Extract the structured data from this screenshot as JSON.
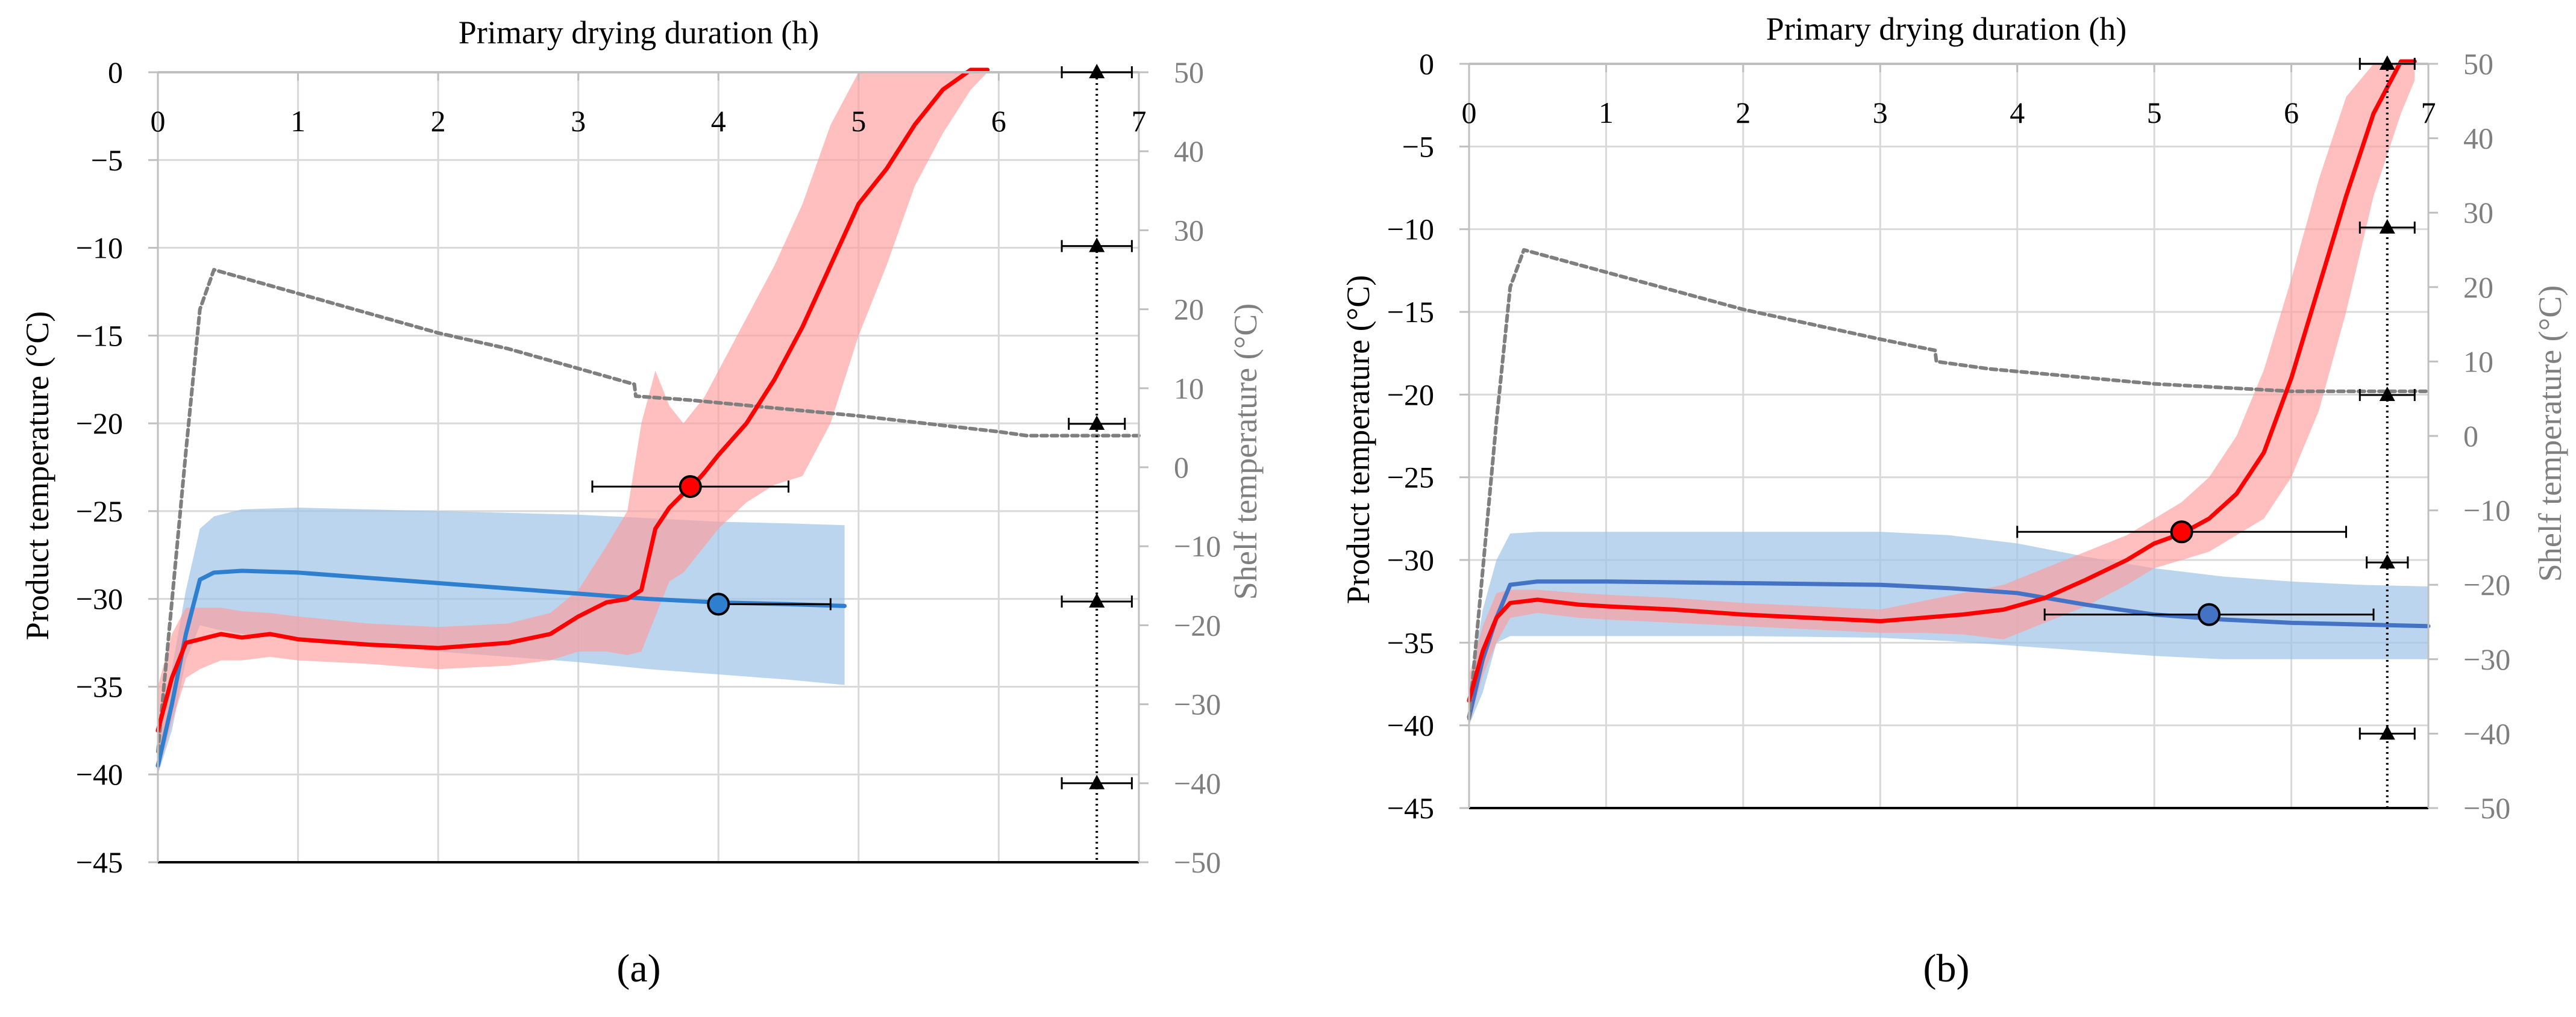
{
  "figure": {
    "panels": [
      {
        "label": "(a)",
        "letter": "a"
      },
      {
        "label": "(b)",
        "letter": "b"
      }
    ]
  },
  "chart_data": [
    {
      "type": "line",
      "panel": "a",
      "title": "Primary drying duration (h)",
      "xlabel": "Primary drying duration (h)",
      "ylabel": "Product temperature (°C)",
      "y2label": "Shelf temperature (°C)",
      "xlim": [
        0,
        7
      ],
      "ylim": [
        -45,
        0
      ],
      "y2lim": [
        -50,
        50
      ],
      "xticks": [
        0,
        1,
        2,
        3,
        4,
        5,
        6,
        7
      ],
      "yticks": [
        0,
        -5,
        -10,
        -15,
        -20,
        -25,
        -30,
        -35,
        -40,
        -45
      ],
      "y2ticks": [
        50,
        40,
        30,
        20,
        10,
        0,
        -10,
        -20,
        -30,
        -40,
        -50
      ],
      "grid": true,
      "colors": {
        "red": "#ff0000",
        "red_band": "#ff9c9c",
        "blue": "#2e7fcf",
        "blue_band": "#9dc3e6",
        "shelf": "#7f7f7f"
      },
      "series": [
        {
          "name": "Product temperature (red)",
          "axis": "left",
          "x": [
            0.0,
            0.1,
            0.2,
            0.3,
            0.45,
            0.6,
            0.8,
            1.0,
            1.5,
            2.0,
            2.5,
            2.8,
            3.0,
            3.2,
            3.35,
            3.45,
            3.55,
            3.65,
            3.75,
            3.8,
            3.9,
            4.0,
            4.2,
            4.4,
            4.6,
            4.8,
            5.0,
            5.2,
            5.4,
            5.6,
            5.8,
            5.92
          ],
          "y": [
            -37.5,
            -34.5,
            -32.5,
            -32.3,
            -32.0,
            -32.2,
            -32.0,
            -32.3,
            -32.6,
            -32.8,
            -32.5,
            -32.0,
            -31.0,
            -30.2,
            -30.0,
            -29.5,
            -26.0,
            -24.8,
            -24.0,
            -23.7,
            -22.8,
            -21.8,
            -20.0,
            -17.5,
            -14.5,
            -11.0,
            -7.5,
            -5.5,
            -3.0,
            -1.0,
            0.5,
            1.5
          ],
          "band_upper": [
            -35.0,
            -32.0,
            -30.5,
            -30.5,
            -30.5,
            -30.7,
            -30.8,
            -31.0,
            -31.4,
            -31.6,
            -31.4,
            -30.8,
            -29.5,
            -27.0,
            -25.0,
            -20.0,
            -17.0,
            -19.0,
            -20.0,
            -19.5,
            -18.5,
            -17.0,
            -14.0,
            -11.0,
            -7.5,
            -3.0,
            0.0,
            0.5,
            0.5,
            0.5,
            0.5,
            0.5
          ],
          "band_lower": [
            -40.0,
            -37.0,
            -34.5,
            -34.0,
            -33.5,
            -33.5,
            -33.3,
            -33.5,
            -33.7,
            -34.0,
            -33.8,
            -33.5,
            -33.0,
            -33.0,
            -33.2,
            -33.0,
            -31.0,
            -29.0,
            -28.5,
            -28.0,
            -27.0,
            -26.0,
            -24.5,
            -23.5,
            -23.0,
            -20.0,
            -15.0,
            -11.0,
            -6.5,
            -3.5,
            -1.0,
            0.0
          ]
        },
        {
          "name": "Product temperature (blue)",
          "axis": "left",
          "x": [
            0.0,
            0.1,
            0.2,
            0.3,
            0.4,
            0.6,
            1.0,
            1.5,
            2.0,
            2.5,
            3.0,
            3.5,
            4.0,
            4.5,
            4.9
          ],
          "y": [
            -39.5,
            -36.0,
            -32.0,
            -28.9,
            -28.5,
            -28.4,
            -28.5,
            -28.8,
            -29.1,
            -29.4,
            -29.7,
            -30.0,
            -30.2,
            -30.3,
            -30.4
          ],
          "band_upper": [
            -38.0,
            -34.0,
            -29.5,
            -26.0,
            -25.3,
            -24.9,
            -24.8,
            -24.9,
            -25.0,
            -25.1,
            -25.2,
            -25.4,
            -25.6,
            -25.7,
            -25.8
          ],
          "band_lower": [
            -40.0,
            -37.5,
            -33.5,
            -31.5,
            -31.7,
            -32.0,
            -32.3,
            -32.6,
            -33.0,
            -33.3,
            -33.6,
            -34.0,
            -34.3,
            -34.6,
            -34.9
          ]
        },
        {
          "name": "Shelf temperature",
          "axis": "right",
          "style": "dashed",
          "x": [
            0.0,
            0.1,
            0.2,
            0.3,
            0.4,
            0.6,
            1.0,
            1.5,
            2.0,
            2.5,
            3.0,
            3.4,
            3.41,
            3.8,
            4.4,
            5.0,
            5.5,
            6.0,
            6.2,
            6.6,
            7.0
          ],
          "y": [
            -36.0,
            -17.0,
            2.0,
            20.0,
            25.0,
            24.0,
            22.0,
            19.5,
            17.0,
            15.0,
            12.5,
            10.5,
            9.0,
            8.5,
            7.5,
            6.5,
            5.5,
            4.5,
            4.0,
            4.0,
            4.0
          ]
        }
      ],
      "markers": [
        {
          "name": "Red endpoint",
          "x": 3.8,
          "y": -23.6,
          "xerr": [
            3.1,
            4.5
          ],
          "color": "#ff0000"
        },
        {
          "name": "Blue endpoint",
          "x": 4.0,
          "y": -30.3,
          "xerr": [
            4.0,
            4.8
          ],
          "color": "#2e7fcf"
        }
      ],
      "vertical_line": {
        "x": 6.7,
        "style": "dotted",
        "points": [
          {
            "y2": 50,
            "xerr": [
              6.45,
              6.95
            ]
          },
          {
            "y2": 28,
            "xerr": [
              6.45,
              6.95
            ]
          },
          {
            "y2": 5.5,
            "xerr": [
              6.5,
              6.9
            ]
          },
          {
            "y2": -17,
            "xerr": [
              6.45,
              6.95
            ]
          },
          {
            "y2": -40,
            "xerr": [
              6.45,
              6.95
            ]
          }
        ]
      }
    },
    {
      "type": "line",
      "panel": "b",
      "title": "Primary drying duration (h)",
      "xlabel": "Primary drying duration (h)",
      "ylabel": "Product temperature (°C)",
      "y2label": "Shelf temperature (°C)",
      "xlim": [
        0,
        7
      ],
      "ylim": [
        -45,
        0
      ],
      "y2lim": [
        -50,
        50
      ],
      "xticks": [
        0,
        1,
        2,
        3,
        4,
        5,
        6,
        7
      ],
      "yticks": [
        0,
        -5,
        -10,
        -15,
        -20,
        -25,
        -30,
        -35,
        -40,
        -45
      ],
      "y2ticks": [
        50,
        40,
        30,
        20,
        10,
        0,
        -10,
        -20,
        -30,
        -40,
        -50
      ],
      "grid": true,
      "colors": {
        "red": "#ff0000",
        "red_band": "#ff9c9c",
        "blue": "#4472c4",
        "blue_band": "#9dc3e6",
        "shelf": "#7f7f7f"
      },
      "series": [
        {
          "name": "Product temperature (red)",
          "axis": "left",
          "x": [
            0.0,
            0.1,
            0.2,
            0.3,
            0.5,
            0.8,
            1.0,
            1.5,
            2.0,
            2.5,
            3.0,
            3.3,
            3.6,
            3.9,
            4.2,
            4.5,
            4.8,
            5.0,
            5.2,
            5.4,
            5.6,
            5.8,
            6.0,
            6.2,
            6.4,
            6.6,
            6.8,
            6.9
          ],
          "y": [
            -38.5,
            -35.5,
            -33.5,
            -32.6,
            -32.4,
            -32.7,
            -32.8,
            -33.0,
            -33.3,
            -33.5,
            -33.7,
            -33.5,
            -33.3,
            -33.0,
            -32.3,
            -31.2,
            -30.0,
            -29.0,
            -28.4,
            -27.5,
            -26.0,
            -23.5,
            -19.0,
            -13.5,
            -8.0,
            -3.0,
            0.5,
            1.5
          ],
          "band_upper": [
            -37.0,
            -34.0,
            -32.0,
            -31.8,
            -31.8,
            -32.0,
            -32.1,
            -32.3,
            -32.6,
            -32.8,
            -33.0,
            -32.5,
            -32.0,
            -31.5,
            -30.5,
            -29.5,
            -28.5,
            -27.5,
            -26.5,
            -25.0,
            -22.5,
            -18.5,
            -13.0,
            -7.0,
            -2.0,
            0.5,
            0.5,
            0.5
          ],
          "band_lower": [
            -40.0,
            -37.0,
            -35.0,
            -33.5,
            -33.2,
            -33.5,
            -33.6,
            -33.8,
            -34.0,
            -34.2,
            -34.4,
            -34.4,
            -34.5,
            -34.8,
            -33.8,
            -32.8,
            -31.5,
            -30.5,
            -30.0,
            -29.5,
            -28.5,
            -27.5,
            -25.0,
            -21.0,
            -15.0,
            -8.0,
            -3.0,
            -1.0
          ]
        },
        {
          "name": "Product temperature (blue)",
          "axis": "left",
          "x": [
            0.0,
            0.1,
            0.2,
            0.3,
            0.5,
            1.0,
            2.0,
            3.0,
            3.5,
            4.0,
            4.5,
            5.0,
            5.5,
            6.0,
            6.5,
            7.0
          ],
          "y": [
            -39.5,
            -36.0,
            -33.5,
            -31.5,
            -31.3,
            -31.3,
            -31.4,
            -31.5,
            -31.7,
            -32.0,
            -32.7,
            -33.3,
            -33.6,
            -33.8,
            -33.9,
            -34.0
          ],
          "band_upper": [
            -38.0,
            -33.0,
            -30.0,
            -28.4,
            -28.3,
            -28.3,
            -28.3,
            -28.3,
            -28.5,
            -29.0,
            -29.8,
            -30.5,
            -31.0,
            -31.3,
            -31.5,
            -31.6
          ],
          "band_lower": [
            -40.0,
            -38.0,
            -35.0,
            -34.6,
            -34.6,
            -34.6,
            -34.6,
            -34.7,
            -34.9,
            -35.2,
            -35.5,
            -35.8,
            -36.0,
            -36.0,
            -36.0,
            -36.0
          ]
        },
        {
          "name": "Shelf temperature",
          "axis": "right",
          "style": "dashed",
          "x": [
            0.0,
            0.1,
            0.2,
            0.3,
            0.4,
            0.6,
            1.0,
            1.5,
            2.0,
            2.5,
            3.0,
            3.4,
            3.41,
            3.8,
            4.4,
            5.0,
            5.5,
            6.0,
            6.5,
            7.0
          ],
          "y": [
            -38.0,
            -18.0,
            2.0,
            20.0,
            25.0,
            24.0,
            22.0,
            19.5,
            17.0,
            15.0,
            13.0,
            11.5,
            10.0,
            9.0,
            8.0,
            7.0,
            6.5,
            6.0,
            6.0,
            6.0
          ]
        }
      ],
      "markers": [
        {
          "name": "Red endpoint",
          "x": 5.2,
          "y": -28.3,
          "xerr": [
            4.0,
            6.4
          ],
          "color": "#ff0000"
        },
        {
          "name": "Blue endpoint",
          "x": 5.4,
          "y": -33.3,
          "xerr": [
            4.2,
            6.6
          ],
          "color": "#4472c4"
        }
      ],
      "vertical_line": {
        "x": 6.7,
        "style": "dotted",
        "points": [
          {
            "y2": 50,
            "xerr": [
              6.5,
              6.9
            ]
          },
          {
            "y2": 28,
            "xerr": [
              6.5,
              6.9
            ]
          },
          {
            "y2": 5.5,
            "xerr": [
              6.5,
              6.9
            ]
          },
          {
            "y2": -17,
            "xerr": [
              6.55,
              6.85
            ]
          },
          {
            "y2": -40,
            "xerr": [
              6.5,
              6.9
            ]
          }
        ]
      }
    }
  ]
}
